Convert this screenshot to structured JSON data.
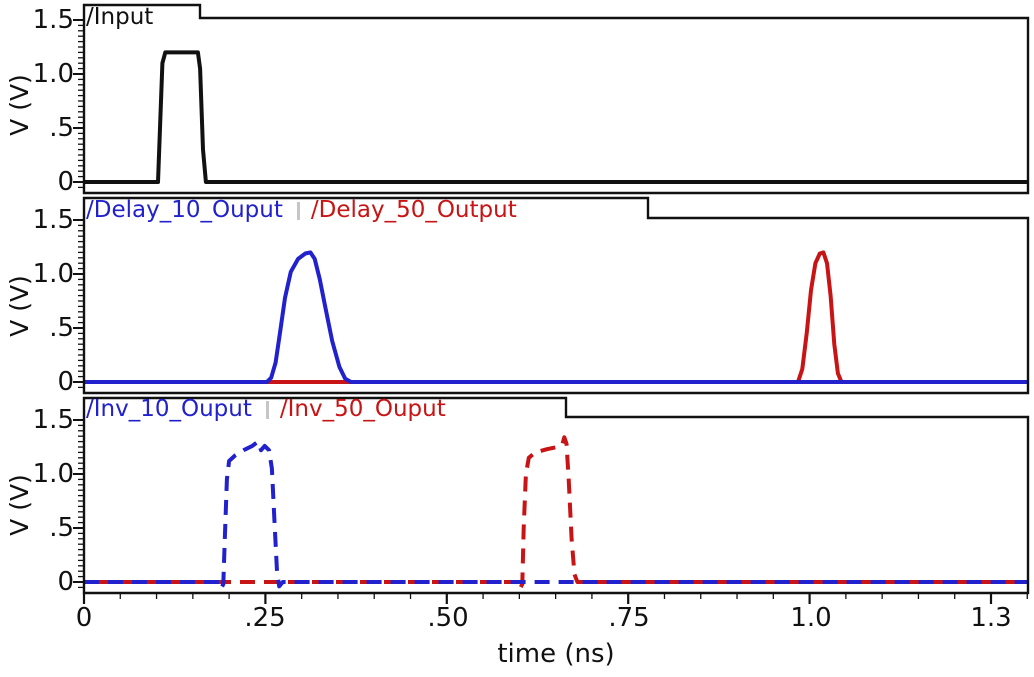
{
  "figure": {
    "bg": "#ffffff",
    "axis_color": "#111111",
    "series_blue": "#2121cd",
    "series_red": "#c81414",
    "legend_separator_color": "#c6c6c6",
    "xaxis": {
      "label": "time (ns)",
      "range": [
        0,
        1.301
      ],
      "minor_step": 0.05,
      "major_ticks": [
        {
          "value": 0,
          "label": "0"
        },
        {
          "value": 0.25,
          "label": ".25"
        },
        {
          "value": 0.5,
          "label": ".50"
        },
        {
          "value": 0.75,
          "label": ".75"
        },
        {
          "value": 1.0,
          "label": "1.0"
        },
        {
          "value": 1.25,
          "label": "1.3"
        }
      ]
    },
    "yaxis": {
      "label": "V (V)",
      "range": [
        -0.1,
        1.52
      ],
      "minor_step": 0.05,
      "major_ticks": [
        {
          "value": 0,
          "label": "0"
        },
        {
          "value": 0.5,
          "label": ".5"
        },
        {
          "value": 1.0,
          "label": "1.0"
        },
        {
          "value": 1.5,
          "label": "1.5"
        }
      ]
    }
  },
  "chart_data": [
    {
      "type": "line",
      "panel": "top",
      "xlabel": "time (ns)",
      "ylabel": "V (V)",
      "xlim": [
        0,
        1.301
      ],
      "ylim": [
        -0.1,
        1.52
      ],
      "grid": false,
      "legend_position": "top-left-tab",
      "series": [
        {
          "name": "/Input",
          "color": "#111111",
          "line_style": "solid",
          "points": [
            [
              0,
              0
            ],
            [
              0.102,
              0
            ],
            [
              0.105,
              0.55
            ],
            [
              0.108,
              1.1
            ],
            [
              0.112,
              1.2
            ],
            [
              0.157,
              1.2
            ],
            [
              0.16,
              1.05
            ],
            [
              0.164,
              0.3
            ],
            [
              0.168,
              0
            ],
            [
              1.301,
              0
            ]
          ]
        }
      ]
    },
    {
      "type": "line",
      "panel": "middle",
      "xlabel": "time (ns)",
      "ylabel": "V (V)",
      "xlim": [
        0,
        1.301
      ],
      "ylim": [
        -0.1,
        1.52
      ],
      "grid": false,
      "legend_position": "top-left-tab",
      "series": [
        {
          "name": "/Delay_10_Ouput",
          "color": "#2121cd",
          "line_style": "solid",
          "points": [
            [
              0,
              0
            ],
            [
              0.252,
              0
            ],
            [
              0.258,
              0.04
            ],
            [
              0.264,
              0.18
            ],
            [
              0.27,
              0.45
            ],
            [
              0.277,
              0.78
            ],
            [
              0.285,
              1.02
            ],
            [
              0.295,
              1.14
            ],
            [
              0.305,
              1.19
            ],
            [
              0.312,
              1.2
            ],
            [
              0.318,
              1.14
            ],
            [
              0.325,
              0.95
            ],
            [
              0.333,
              0.68
            ],
            [
              0.342,
              0.38
            ],
            [
              0.352,
              0.14
            ],
            [
              0.36,
              0.03
            ],
            [
              0.368,
              0
            ],
            [
              1.301,
              0
            ]
          ]
        },
        {
          "name": "/Delay_50_Output",
          "color": "#c81414",
          "line_style": "solid",
          "points": [
            [
              0,
              0
            ],
            [
              0.984,
              0
            ],
            [
              0.99,
              0.12
            ],
            [
              0.996,
              0.45
            ],
            [
              1.002,
              0.85
            ],
            [
              1.008,
              1.1
            ],
            [
              1.014,
              1.19
            ],
            [
              1.019,
              1.2
            ],
            [
              1.024,
              1.1
            ],
            [
              1.029,
              0.8
            ],
            [
              1.034,
              0.35
            ],
            [
              1.039,
              0.08
            ],
            [
              1.044,
              0
            ],
            [
              1.301,
              0
            ]
          ]
        }
      ]
    },
    {
      "type": "line",
      "panel": "bottom",
      "xlabel": "time (ns)",
      "ylabel": "V (V)",
      "xlim": [
        0,
        1.301
      ],
      "ylim": [
        -0.1,
        1.52
      ],
      "grid": false,
      "legend_position": "top-left-tab",
      "series": [
        {
          "name": "/Inv_10_Ouput",
          "color": "#2121cd",
          "line_style": "dashed",
          "points": [
            [
              0,
              0
            ],
            [
              0.186,
              0
            ],
            [
              0.189,
              -0.06
            ],
            [
              0.192,
              -0.02
            ],
            [
              0.194,
              0.4
            ],
            [
              0.197,
              0.95
            ],
            [
              0.2,
              1.12
            ],
            [
              0.208,
              1.17
            ],
            [
              0.22,
              1.22
            ],
            [
              0.232,
              1.26
            ],
            [
              0.24,
              1.3
            ],
            [
              0.244,
              1.22
            ],
            [
              0.249,
              1.26
            ],
            [
              0.255,
              1.22
            ],
            [
              0.259,
              1.05
            ],
            [
              0.263,
              0.5
            ],
            [
              0.266,
              0.1
            ],
            [
              0.269,
              -0.04
            ],
            [
              0.274,
              0
            ],
            [
              1.301,
              0
            ]
          ]
        },
        {
          "name": "/Inv_50_Ouput",
          "color": "#c81414",
          "line_style": "dashed",
          "points": [
            [
              0,
              0
            ],
            [
              0.597,
              0
            ],
            [
              0.6,
              -0.07
            ],
            [
              0.604,
              -0.02
            ],
            [
              0.606,
              0.5
            ],
            [
              0.609,
              1.0
            ],
            [
              0.613,
              1.15
            ],
            [
              0.622,
              1.2
            ],
            [
              0.638,
              1.23
            ],
            [
              0.652,
              1.25
            ],
            [
              0.659,
              1.27
            ],
            [
              0.662,
              1.34
            ],
            [
              0.665,
              1.28
            ],
            [
              0.668,
              0.95
            ],
            [
              0.672,
              0.4
            ],
            [
              0.676,
              0.07
            ],
            [
              0.68,
              0
            ],
            [
              1.301,
              0
            ]
          ]
        }
      ]
    }
  ]
}
